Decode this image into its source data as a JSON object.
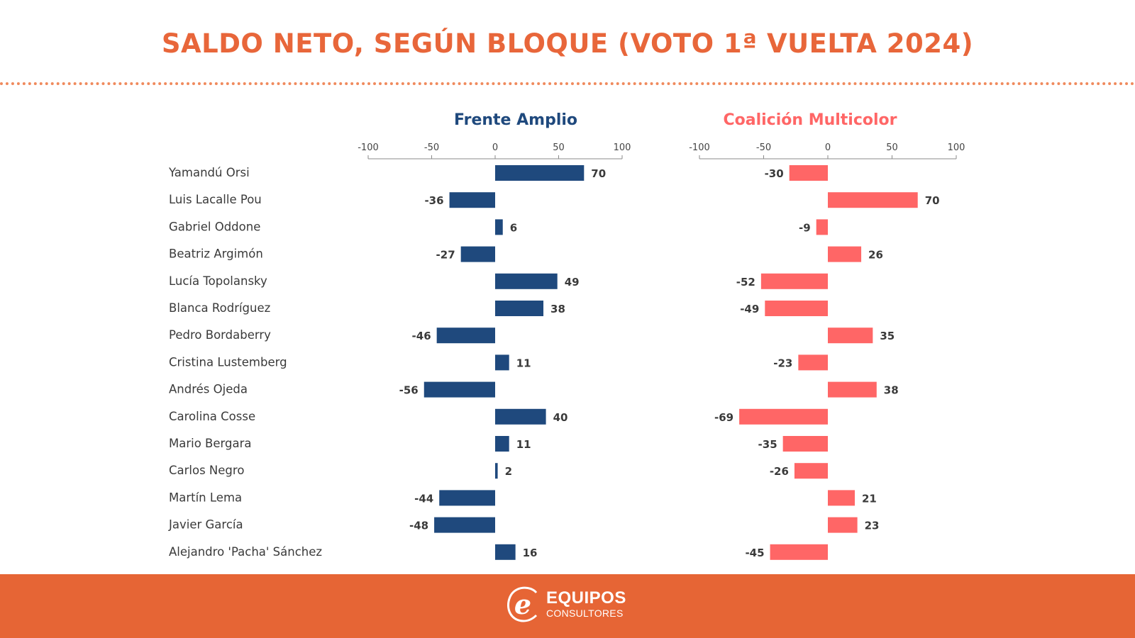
{
  "header": {
    "title": "SALDO NETO, SEGÚN BLOQUE (VOTO 1ª VUELTA 2024)"
  },
  "footer": {
    "brand_name": "EQUIPOS",
    "brand_sub": "CONSULTORES",
    "logo_icon": "equipos-e-logo-icon"
  },
  "colors": {
    "title": "#e8663a",
    "frente_amplio": "#1f497d",
    "coalicion": "#ff6666",
    "footer": "#e66535",
    "label": "#3a3a3a"
  },
  "chart_data": [
    {
      "type": "bar",
      "orientation": "horizontal",
      "title": "Frente Amplio",
      "color": "#1f497d",
      "xlim": [
        -100,
        100
      ],
      "xticks": [
        -100,
        -50,
        0,
        50,
        100
      ],
      "xtick_labels": [
        "-100",
        "-50",
        "0",
        "50",
        "100"
      ],
      "grid": false,
      "categories": [
        "Yamandú Orsi",
        "Luis Lacalle Pou",
        "Gabriel Oddone",
        "Beatriz Argimón",
        "Lucía Topolansky",
        "Blanca Rodríguez",
        "Pedro Bordaberry",
        "Cristina Lustemberg",
        "Andrés Ojeda",
        "Carolina Cosse",
        "Mario Bergara",
        "Carlos Negro",
        "Martín Lema",
        "Javier García",
        "Alejandro 'Pacha' Sánchez"
      ],
      "values": [
        70,
        -36,
        6,
        -27,
        49,
        38,
        -46,
        11,
        -56,
        40,
        11,
        2,
        -44,
        -48,
        16
      ]
    },
    {
      "type": "bar",
      "orientation": "horizontal",
      "title": "Coalición Multicolor",
      "color": "#ff6666",
      "xlim": [
        -100,
        100
      ],
      "xticks": [
        -100,
        -50,
        0,
        50,
        100
      ],
      "xtick_labels": [
        "-100",
        "-50",
        "0",
        "50",
        "100"
      ],
      "grid": false,
      "categories": [
        "Yamandú Orsi",
        "Luis Lacalle Pou",
        "Gabriel Oddone",
        "Beatriz Argimón",
        "Lucía Topolansky",
        "Blanca Rodríguez",
        "Pedro Bordaberry",
        "Cristina Lustemberg",
        "Andrés Ojeda",
        "Carolina Cosse",
        "Mario Bergara",
        "Carlos Negro",
        "Martín Lema",
        "Javier García",
        "Alejandro 'Pacha' Sánchez"
      ],
      "values": [
        -30,
        70,
        -9,
        26,
        -52,
        -49,
        35,
        -23,
        38,
        -69,
        -35,
        -26,
        21,
        23,
        -45
      ]
    }
  ]
}
